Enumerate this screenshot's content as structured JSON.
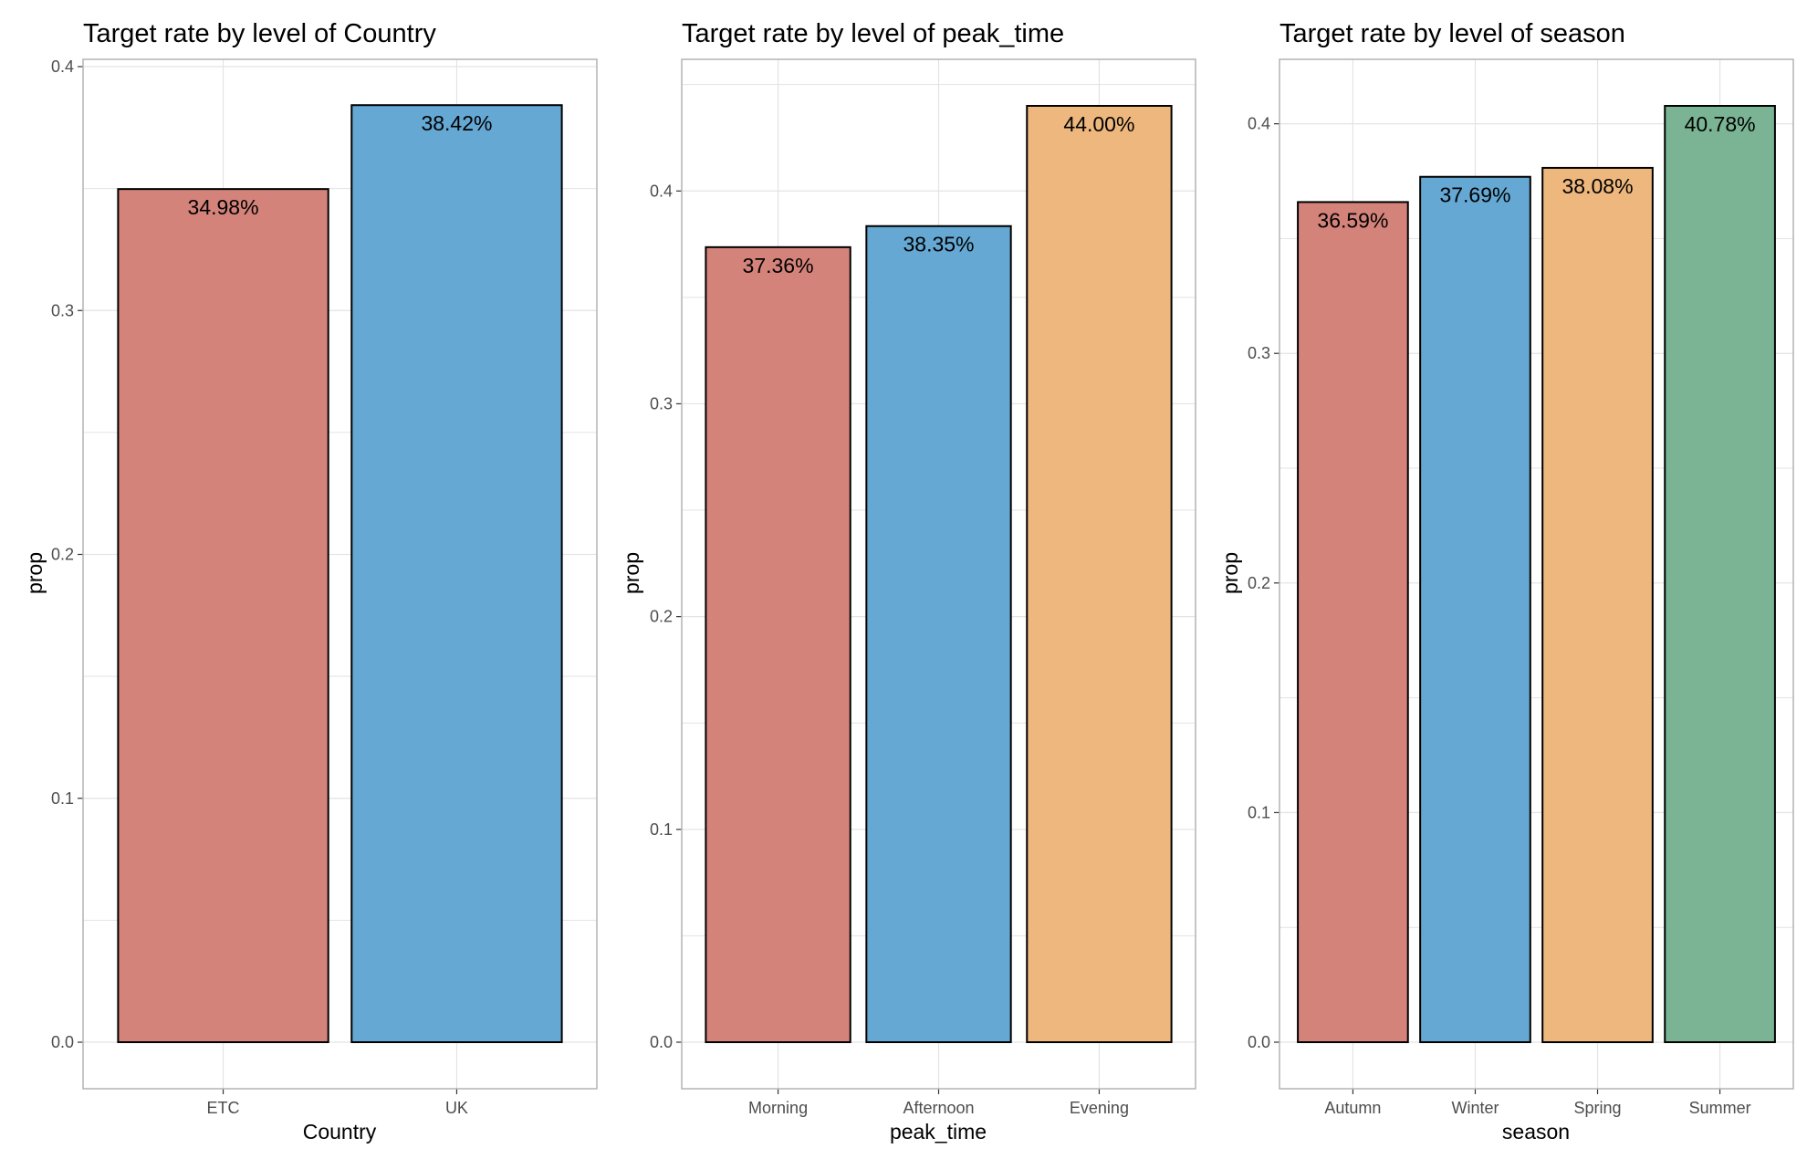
{
  "colors": {
    "bar_1": "#d4837a",
    "bar_2": "#64a8d3",
    "bar_3": "#edb77e",
    "bar_4": "#7ab494",
    "grid": "#e3e3e3",
    "panel_border": "#b3b3b3",
    "bar_outline": "#000000"
  },
  "chart_data": [
    {
      "type": "bar",
      "title": "Target rate by level of Country",
      "xlabel": "Country",
      "ylabel": "prop",
      "categories": [
        "ETC",
        "UK"
      ],
      "values": [
        0.3498,
        0.3842
      ],
      "data_labels": [
        "34.98%",
        "38.42%"
      ],
      "ylim": [
        0,
        0.4
      ],
      "yticks": [
        0,
        0.1,
        0.2,
        0.3,
        0.4
      ],
      "ytick_labels": [
        "0.0",
        "0.1",
        "0.2",
        "0.3",
        "0.4"
      ],
      "grid": true,
      "legend": "none"
    },
    {
      "type": "bar",
      "title": "Target rate by level of peak_time",
      "xlabel": "peak_time",
      "ylabel": "prop",
      "categories": [
        "Morning",
        "Afternoon",
        "Evening"
      ],
      "values": [
        0.3736,
        0.3835,
        0.44
      ],
      "data_labels": [
        "37.36%",
        "38.35%",
        "44.00%"
      ],
      "ylim": [
        0,
        0.44
      ],
      "yticks": [
        0,
        0.1,
        0.2,
        0.3,
        0.4
      ],
      "ytick_labels": [
        "0.0",
        "0.1",
        "0.2",
        "0.3",
        "0.4"
      ],
      "grid": true,
      "legend": "none"
    },
    {
      "type": "bar",
      "title": "Target rate by level of season",
      "xlabel": "season",
      "ylabel": "prop",
      "categories": [
        "Autumn",
        "Winter",
        "Spring",
        "Summer"
      ],
      "values": [
        0.3659,
        0.3769,
        0.3808,
        0.4078
      ],
      "data_labels": [
        "36.59%",
        "37.69%",
        "38.08%",
        "40.78%"
      ],
      "ylim": [
        0,
        0.4078
      ],
      "yticks": [
        0,
        0.1,
        0.2,
        0.3,
        0.4
      ],
      "ytick_labels": [
        "0.0",
        "0.1",
        "0.2",
        "0.3",
        "0.4"
      ],
      "grid": true,
      "legend": "none"
    }
  ]
}
